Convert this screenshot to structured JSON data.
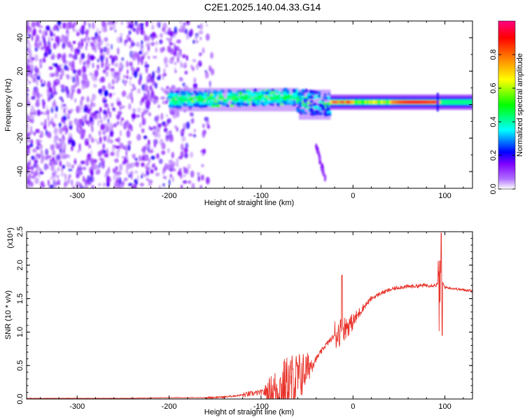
{
  "figure": {
    "title": "C2E1.2025.140.04.33.G14"
  },
  "chart_data": [
    {
      "type": "heatmap",
      "title": "C2E1.2025.140.04.33.G14",
      "xlabel": "Height of straight line (km)",
      "ylabel": "Frequency (Hz)",
      "xlim": [
        -355,
        130
      ],
      "ylim": [
        -50,
        50
      ],
      "xticks": [
        -300,
        -200,
        -100,
        0,
        100
      ],
      "xtick_labels": [
        "-300",
        "-200",
        "-100",
        "0",
        "100"
      ],
      "yticks": [
        -40,
        -20,
        0,
        20,
        40
      ],
      "ytick_labels": [
        "-40",
        "-20",
        "0",
        "20",
        "40"
      ],
      "colorbar": {
        "label": "Normalized spectral amplitude",
        "range": [
          0,
          1
        ],
        "ticks": [
          0.0,
          0.2,
          0.4,
          0.6,
          0.8
        ],
        "tick_labels": [
          "0.0",
          "0.2",
          "0.4",
          "0.6",
          "0.8"
        ],
        "colormap": [
          "#ffffff",
          "#7f00ff",
          "#0000ff",
          "#00ffff",
          "#00ff00",
          "#ffff00",
          "#ff8000",
          "#ff0000",
          "#ff0080"
        ]
      },
      "features": [
        {
          "segment": "scattered noise",
          "x_range": [
            -355,
            -150
          ],
          "frequency_range": [
            -50,
            50
          ],
          "amplitude": 0.05
        },
        {
          "segment": "emerging carrier",
          "x_range": [
            -200,
            -60
          ],
          "frequency_center": 3,
          "frequency_halfwidth": 5,
          "amplitude": 0.3
        },
        {
          "segment": "broadened carrier",
          "x_range": [
            -60,
            -25
          ],
          "frequency_center": -2,
          "frequency_halfwidth": 8,
          "amplitude": 0.25
        },
        {
          "segment": "tail streak",
          "x_range": [
            -40,
            -30
          ],
          "frequency_range": [
            -45,
            -25
          ],
          "amplitude": 0.08
        },
        {
          "segment": "stable carrier",
          "x_range": [
            -25,
            130
          ],
          "frequency_center": 1.5,
          "frequency_halfwidth": 2.5,
          "amplitude": 0.9
        }
      ]
    },
    {
      "type": "line",
      "xlabel": "Height of straight line (km)",
      "ylabel": "SNR (10 * v/v)",
      "y_multiplier": "(x10⁴)",
      "xlim": [
        -355,
        130
      ],
      "ylim": [
        0,
        2.5
      ],
      "xticks": [
        -300,
        -200,
        -100,
        0,
        100
      ],
      "xtick_labels": [
        "-300",
        "-200",
        "-100",
        "0",
        "100"
      ],
      "yticks": [
        0.0,
        0.5,
        1.0,
        1.5,
        2.0,
        2.5
      ],
      "ytick_labels": [
        "0.0",
        "0.5",
        "1.0",
        "1.5",
        "2.0",
        "2.5"
      ],
      "color": "#e8332a",
      "series": [
        {
          "x": [
            -355,
            -300,
            -250,
            -200,
            -160,
            -140,
            -120,
            -100,
            -80,
            -60,
            -50,
            -40,
            -30,
            -20,
            -10,
            0,
            10,
            20,
            30,
            40,
            50,
            60,
            70,
            80,
            85,
            90,
            93,
            95,
            97,
            100,
            110,
            120,
            130
          ],
          "values": [
            0.01,
            0.01,
            0.01,
            0.02,
            0.02,
            0.03,
            0.06,
            0.1,
            0.14,
            0.3,
            0.45,
            0.6,
            0.8,
            0.95,
            1.05,
            1.15,
            1.35,
            1.5,
            1.58,
            1.63,
            1.67,
            1.68,
            1.69,
            1.7,
            1.7,
            1.7,
            1.72,
            1.65,
            1.75,
            1.67,
            1.65,
            1.63,
            1.62
          ]
        }
      ],
      "noise_envelope": [
        {
          "x": [
            -100,
            -20
          ],
          "amplitude": 0.45
        },
        {
          "x": [
            92,
            97
          ],
          "amplitude": 0.75
        }
      ],
      "peaks": [
        {
          "x": -12,
          "y": 1.85
        },
        {
          "x": 96,
          "y": 2.48
        },
        {
          "x": 97,
          "y": 0.95
        }
      ]
    }
  ]
}
